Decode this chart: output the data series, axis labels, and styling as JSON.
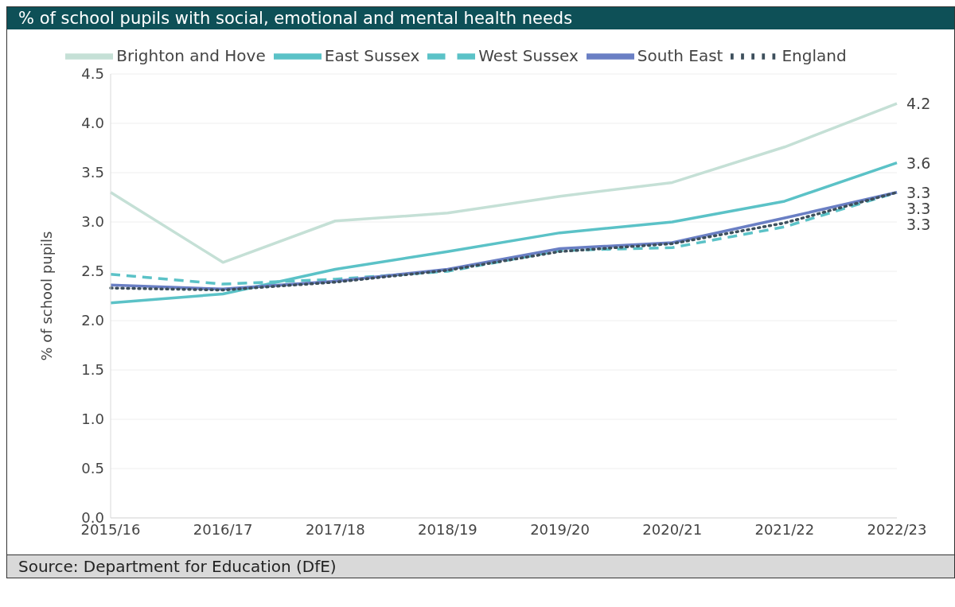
{
  "chart_data": {
    "type": "line",
    "title": "% of school pupils with social, emotional and mental health needs",
    "ylabel": "% of school pupils",
    "annotations": [
      "Source: Department for Education (DfE)"
    ],
    "categories": [
      "2015/16",
      "2016/17",
      "2017/18",
      "2018/19",
      "2019/20",
      "2020/21",
      "2021/22",
      "2022/23"
    ],
    "series": [
      {
        "name": "Brighton and Hove",
        "color": "#c5e0d6",
        "line_style": "solid",
        "values": [
          3.3,
          2.59,
          3.01,
          3.09,
          3.26,
          3.4,
          3.76,
          4.2
        ],
        "value_labels": [
          null,
          null,
          null,
          null,
          null,
          null,
          null,
          "4.2"
        ]
      },
      {
        "name": "East Sussex",
        "color": "#5bc2c7",
        "line_style": "solid",
        "values": [
          2.18,
          2.27,
          2.52,
          2.7,
          2.89,
          3.0,
          3.21,
          3.6
        ],
        "value_labels": [
          null,
          null,
          null,
          null,
          null,
          null,
          null,
          "3.6"
        ]
      },
      {
        "name": "West Sussex",
        "color": "#5bc2c7",
        "line_style": "dashed",
        "values": [
          2.47,
          2.37,
          2.42,
          2.5,
          2.71,
          2.74,
          2.95,
          3.3
        ],
        "value_labels": [
          null,
          null,
          null,
          null,
          null,
          null,
          null,
          "3.3"
        ]
      },
      {
        "name": "South East",
        "color": "#6a7fc4",
        "line_style": "solid",
        "values": [
          2.36,
          2.32,
          2.4,
          2.52,
          2.73,
          2.79,
          3.04,
          3.3
        ],
        "value_labels": [
          null,
          null,
          null,
          null,
          null,
          null,
          null,
          "3.3"
        ]
      },
      {
        "name": "England",
        "color": "#3d4f5c",
        "line_style": "dotted",
        "values": [
          2.33,
          2.31,
          2.39,
          2.51,
          2.7,
          2.78,
          2.99,
          3.3
        ],
        "value_labels": [
          null,
          null,
          null,
          null,
          null,
          null,
          null,
          "3.3"
        ]
      }
    ],
    "ylim": [
      0,
      4.5
    ],
    "yticks": [
      {
        "value": 0,
        "label": "0.0"
      },
      {
        "value": 0.5,
        "label": "0.5"
      },
      {
        "value": 1,
        "label": "1.0"
      },
      {
        "value": 1.5,
        "label": "1.5"
      },
      {
        "value": 2,
        "label": "2.0"
      },
      {
        "value": 2.5,
        "label": "2.5"
      },
      {
        "value": 3,
        "label": "3.0"
      },
      {
        "value": 3.5,
        "label": "3.5"
      },
      {
        "value": 4,
        "label": "4.0"
      },
      {
        "value": 4.5,
        "label": "4.5"
      }
    ],
    "grid": "y",
    "legend": "top",
    "marker": "none"
  }
}
